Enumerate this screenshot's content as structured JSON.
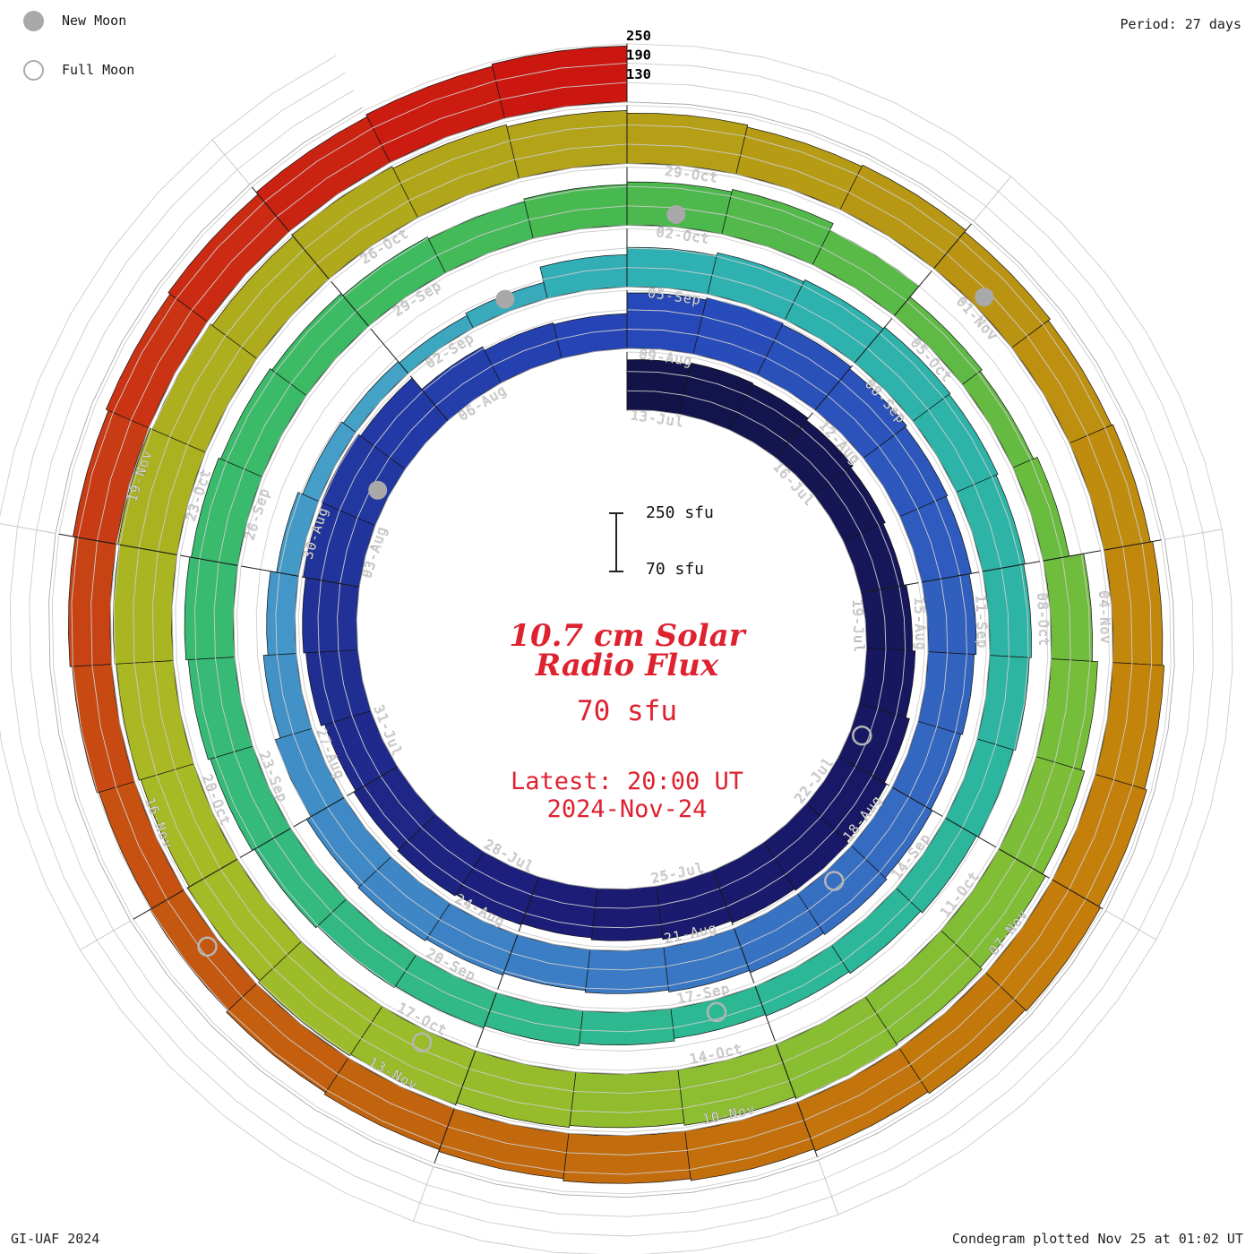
{
  "legend": {
    "new_moon": "New Moon",
    "full_moon": "Full Moon"
  },
  "meta": {
    "period_label": "Period: 27 days",
    "credit": "GI-UAF 2024",
    "plotted": "Condegram plotted Nov 25 at 01:02 UT"
  },
  "center": {
    "title_line1": "10.7 cm Solar",
    "title_line2": "Radio Flux",
    "flux_label": "70 sfu",
    "latest_line1": "Latest: 20:00 UT",
    "latest_line2": "2024-Nov-24"
  },
  "scalebar": {
    "top_label": "250 sfu",
    "bottom_label": "70 sfu"
  },
  "colors": {
    "title_red": "#de2230",
    "grid": "#cccccc",
    "baseline_grid": "#a8a8a8",
    "segment_line": "#1a1a1a",
    "empty_grid": "#c4c4c4",
    "new_moon_fill": "#a9a9a9",
    "full_moon_stroke": "#b5b5b5",
    "date_label": "#d9d9d9"
  },
  "chart_data": {
    "type": "bar",
    "subtype": "polar-spiral-condegram",
    "title": "10.7 cm Solar Radio Flux",
    "units": "sfu",
    "baseline": 70,
    "scale_max": 250,
    "grid_levels": [
      70,
      130,
      190,
      250
    ],
    "radial_tick_labels": [
      250,
      190,
      130
    ],
    "period_days": 27,
    "start_date": "2024-07-13",
    "end_date": "2024-11-24",
    "legend_position": "top-left",
    "date_labels": [
      "13-Jul",
      "16-Jul",
      "19-Jul",
      "22-Jul",
      "25-Jul",
      "28-Jul",
      "31-Jul",
      "03-Aug",
      "06-Aug",
      "09-Aug",
      "12-Aug",
      "15-Aug",
      "18-Aug",
      "21-Aug",
      "24-Aug",
      "27-Aug",
      "30-Aug",
      "02-Sep",
      "05-Sep",
      "08-Sep",
      "11-Sep",
      "14-Sep",
      "17-Sep",
      "20-Sep",
      "23-Sep",
      "26-Sep",
      "29-Sep",
      "02-Oct",
      "05-Oct",
      "08-Oct",
      "11-Oct",
      "14-Oct",
      "17-Oct",
      "20-Oct",
      "23-Oct",
      "26-Oct",
      "29-Oct",
      "01-Nov",
      "04-Nov",
      "07-Nov",
      "10-Nov",
      "13-Nov",
      "16-Nov",
      "19-Nov"
    ],
    "values": [
      226,
      232,
      228,
      220,
      212,
      205,
      212,
      221,
      233,
      241,
      248,
      243,
      236,
      230,
      224,
      228,
      233,
      226,
      219,
      231,
      238,
      246,
      251,
      242,
      196,
      183,
      178,
      242,
      249,
      244,
      237,
      231,
      226,
      219,
      213,
      208,
      214,
      221,
      216,
      209,
      203,
      197,
      203,
      209,
      204,
      188,
      172,
      158,
      139,
      124,
      118,
      113,
      121,
      170,
      192,
      201,
      208,
      214,
      210,
      204,
      199,
      193,
      187,
      181,
      174,
      168,
      163,
      171,
      179,
      186,
      192,
      199,
      207,
      214,
      221,
      216,
      209,
      202,
      194,
      187,
      196,
      204,
      212,
      189,
      146,
      139,
      152,
      197,
      214,
      226,
      237,
      244,
      249,
      243,
      236,
      242,
      248,
      253,
      247,
      241,
      246,
      251,
      256,
      249,
      242,
      247,
      241,
      234,
      226,
      219,
      224,
      218,
      211,
      216,
      223,
      229,
      236,
      242,
      237,
      231,
      224,
      218,
      211,
      205,
      198,
      191,
      185,
      192,
      199,
      206,
      214,
      221,
      229,
      236,
      243
    ],
    "moons": [
      {
        "type": "full",
        "day": 8.5
      },
      {
        "type": "new",
        "day": 22.5
      },
      {
        "type": "full",
        "day": 37.5
      },
      {
        "type": "new",
        "day": 52.5
      },
      {
        "type": "full",
        "day": 66.5
      },
      {
        "type": "new",
        "day": 81.5
      },
      {
        "type": "full",
        "day": 96.5
      },
      {
        "type": "new",
        "day": 111.5
      },
      {
        "type": "full",
        "day": 125.5
      }
    ],
    "color_stops": [
      [
        0,
        "#131347"
      ],
      [
        14,
        "#1b1b74"
      ],
      [
        27,
        "#2646b8"
      ],
      [
        40,
        "#3a78c4"
      ],
      [
        50,
        "#46a0c8"
      ],
      [
        54,
        "#2fb0b4"
      ],
      [
        66,
        "#2cb896"
      ],
      [
        78,
        "#3dbb62"
      ],
      [
        81,
        "#4ab84e"
      ],
      [
        90,
        "#7fbe36"
      ],
      [
        100,
        "#a8ba24"
      ],
      [
        108,
        "#b3a118"
      ],
      [
        116,
        "#c4820a"
      ],
      [
        124,
        "#c2620e"
      ],
      [
        129,
        "#c93f14"
      ],
      [
        134,
        "#cc1710"
      ]
    ]
  }
}
